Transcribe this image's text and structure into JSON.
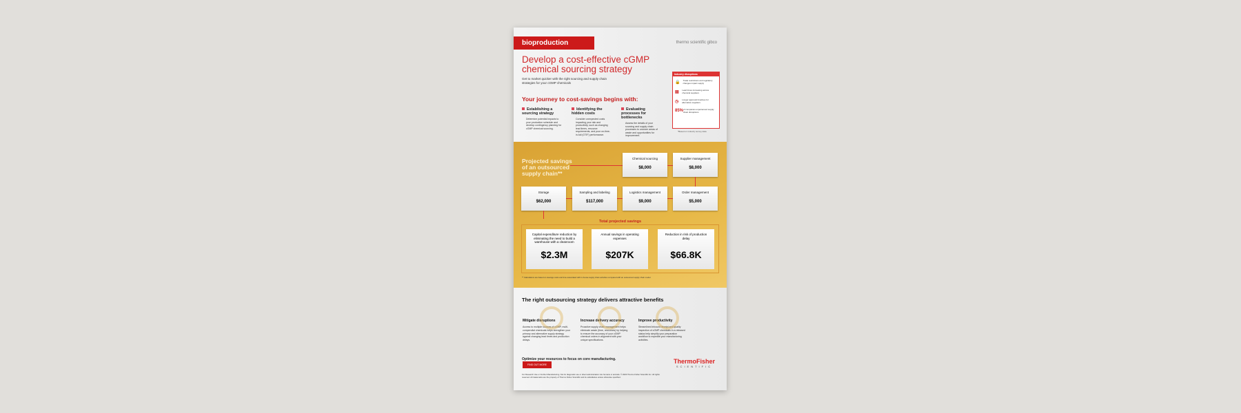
{
  "header": {
    "label": "bioproduction",
    "brands": "thermo scientific   gibco"
  },
  "title": "Develop a cost-effective cGMP chemical sourcing strategy",
  "subtitle": "Get to market quicker with the right sourcing and supply chain strategies for your cGMP chemicals",
  "journey": {
    "heading": "Your journey to cost-savings begins with:",
    "steps": [
      {
        "title": "Establishing a sourcing strategy",
        "text": "Determine potential impacts to your production schedule and develop contingency planning for cGMP chemical sourcing."
      },
      {
        "title": "Identifying the hidden costs",
        "text": "Consider unexpected costs impacting your risk and productivity, such as changing lead times, resource requirements, and poor on-time-in-full (OTIF) performance."
      },
      {
        "title": "Evaluating processes for bottlenecks",
        "text": "Assess the details of your sourcing and supply chain processes to uncover areas of waste and opportunities for improvement."
      }
    ]
  },
  "sidebar": {
    "heading": "Industry disruptions",
    "items": [
      {
        "icon": "lock-icon",
        "text": "Trade restrictions and regulatory changes impact supply"
      },
      {
        "icon": "calendar-icon",
        "text": "Lead times increasing across chemical suppliers"
      },
      {
        "icon": "clock-icon",
        "text": "Longer approval timelines for alternative suppliers"
      },
      {
        "icon": "percent",
        "value": "85%",
        "text": "of companies experienced supply chain disruptions"
      }
    ],
    "note": "*Based on industry survey data"
  },
  "savings": {
    "heading": "Projected savings of an outsourced supply chain**",
    "items": [
      {
        "label": "Chemical sourcing",
        "value": "$8,000"
      },
      {
        "label": "Supplier management",
        "value": "$8,000"
      },
      {
        "label": "Order management",
        "value": "$5,000"
      },
      {
        "label": "Logistics management",
        "value": "$9,000"
      },
      {
        "label": "Sampling and labeling",
        "value": "$117,000"
      },
      {
        "label": "Storage",
        "value": "$62,000"
      }
    ],
    "total_label": "Total projected savings",
    "totals": [
      {
        "label": "Capital expenditure reduction by eliminating the need to build a warehouse with a cleanroom",
        "value": "$2.3M"
      },
      {
        "label": "Annual savings in operating expenses",
        "value": "$207K"
      },
      {
        "label": "Reduction in risk of production delay",
        "value": "$66.8K"
      }
    ],
    "footnote": "** Calculations are based on average costs and time associated with in-house supply chain activities compared with an outsourced supply chain model."
  },
  "benefits": {
    "heading": "The right outsourcing strategy delivers attractive benefits",
    "items": [
      {
        "title": "Mitigate disruptions",
        "text": "Access to multiple sources of cGMP, multi-compendial chemicals helps strengthen your primary and alternative supply strategy against changing lead times and production delays."
      },
      {
        "title": "Increase delivery accuracy",
        "text": "Proactive supply chain management helps eliminate waste (time, resources) by helping to ensure the accuracy of your cGMP chemical orders in alignment with your unique specifications."
      },
      {
        "title": "Improve productivity",
        "text": "Streamlined inbound receipt and quality inspection of cGMP chemicals in a released status help simplify your preparation workflow to expedite your manufacturing activities."
      }
    ]
  },
  "cta": {
    "text": "Optimize your resources to focus on core manufacturing.",
    "button": "FIND OUT MORE"
  },
  "logo": {
    "name": "ThermoFisher",
    "sub": "SCIENTIFIC"
  },
  "fine_print": "For Research Use or Further Manufacturing. Not for diagnostic use or direct administration into humans or animals. © 2023 Thermo Fisher Scientific Inc. All rights reserved. All trademarks are the property of Thermo Fisher Scientific and its subsidiaries unless otherwise specified."
}
